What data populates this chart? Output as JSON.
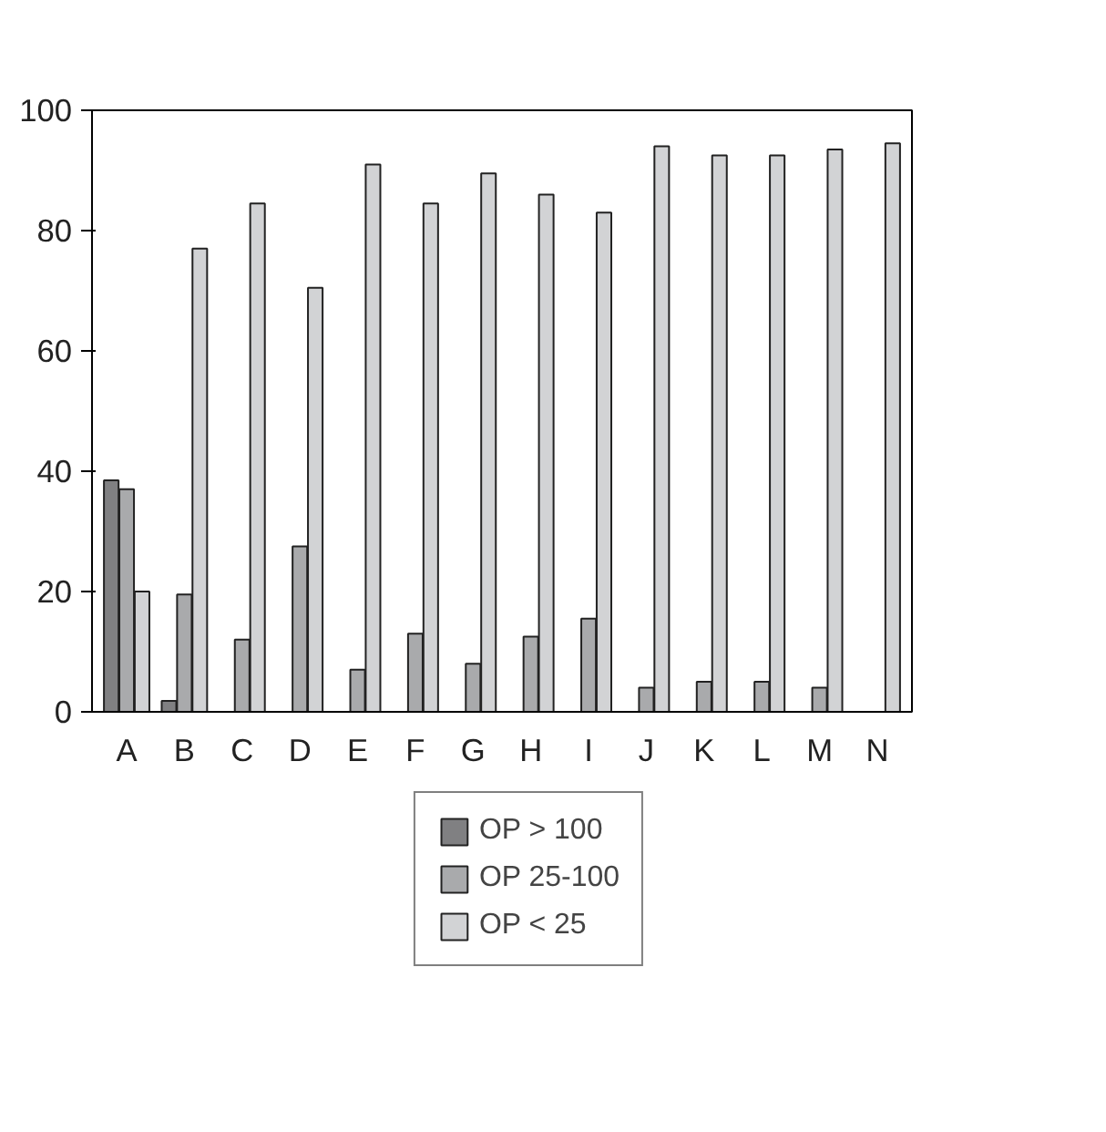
{
  "chart_data": {
    "type": "bar",
    "categories": [
      "A",
      "B",
      "C",
      "D",
      "E",
      "F",
      "G",
      "H",
      "I",
      "J",
      "K",
      "L",
      "M",
      "N"
    ],
    "series": [
      {
        "name": "OP > 100",
        "color": "#808082",
        "values": [
          38.5,
          1.8,
          null,
          0,
          0,
          null,
          0,
          0,
          0,
          0,
          0,
          0,
          0,
          0
        ]
      },
      {
        "name": "OP 25-100",
        "color": "#a9aaac",
        "values": [
          37,
          19.5,
          12,
          27.5,
          7,
          13,
          8,
          12.5,
          15.5,
          4,
          5,
          5,
          4,
          0
        ]
      },
      {
        "name": "OP < 25",
        "color": "#d2d3d5",
        "values": [
          20,
          77,
          84.5,
          70.5,
          91,
          84.5,
          89.5,
          86,
          83,
          94,
          92.5,
          92.5,
          93.5,
          94.5
        ]
      }
    ],
    "ylim": [
      0,
      100
    ],
    "yticks": [
      0,
      20,
      40,
      60,
      80,
      100
    ],
    "grid": false,
    "legend": "bottom"
  }
}
